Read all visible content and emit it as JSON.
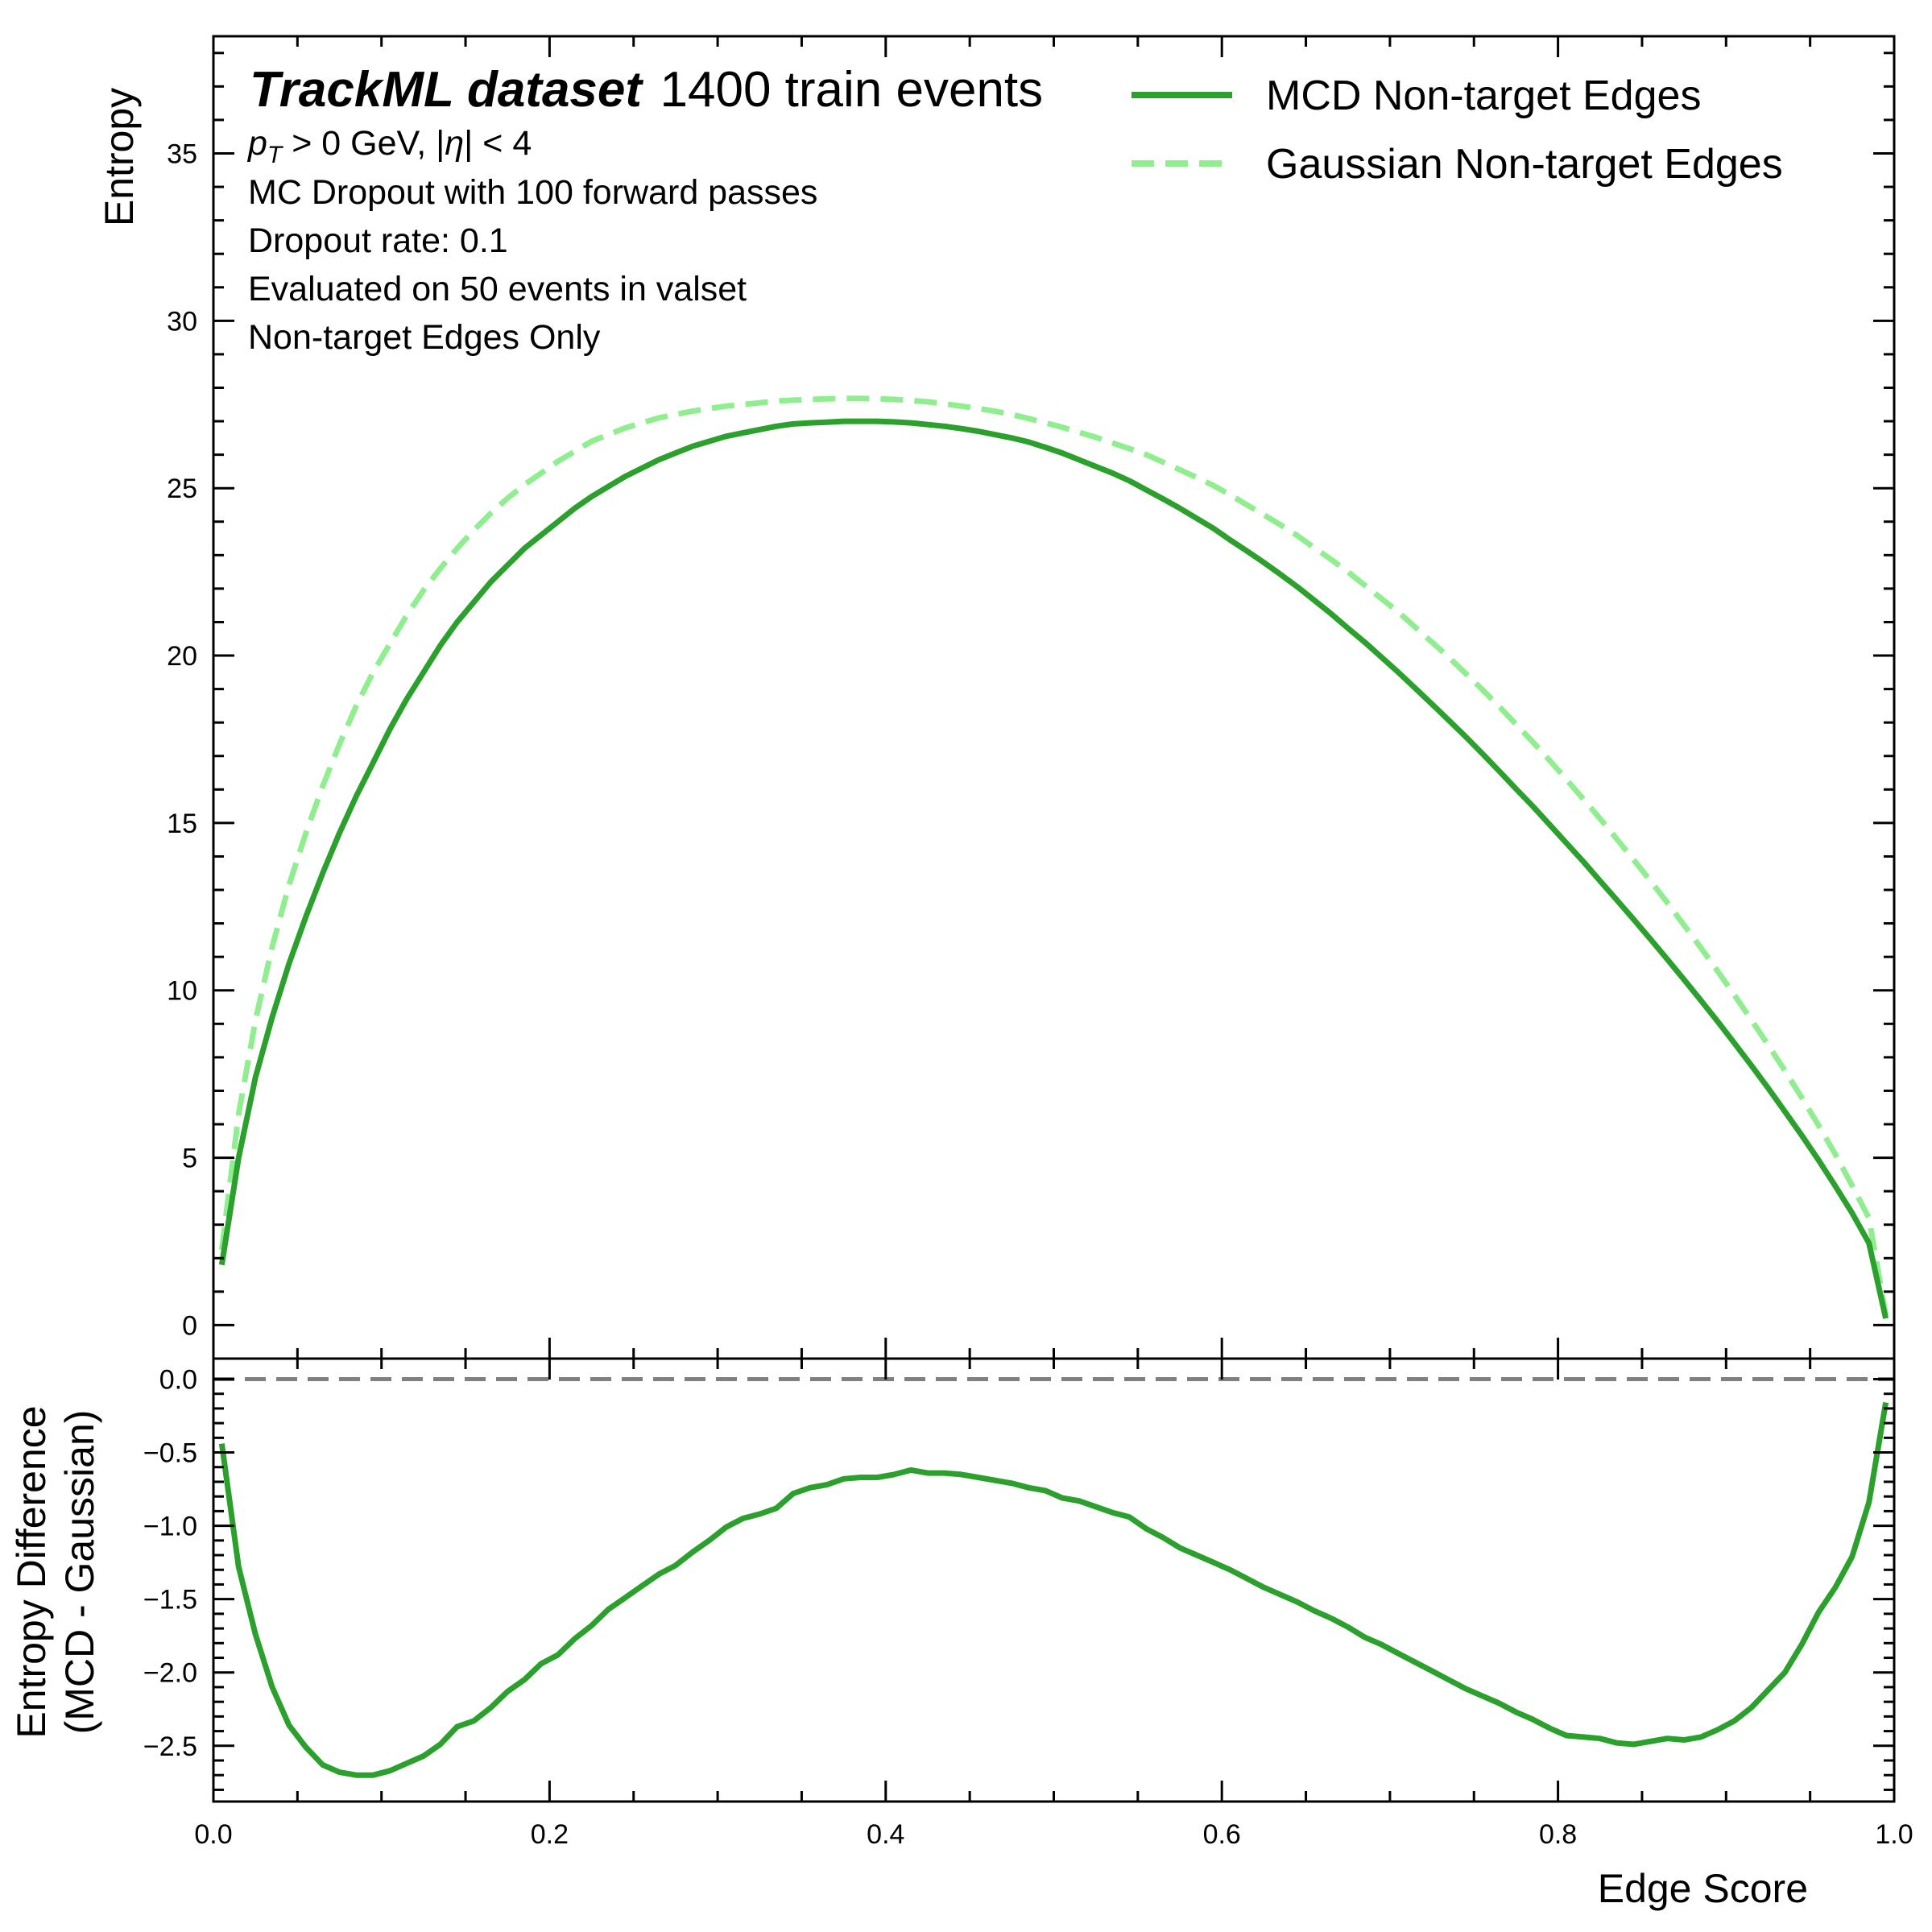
{
  "chart_data": [
    {
      "type": "line",
      "panel": "main",
      "title_bold": "TrackML dataset",
      "title_rest": "1400 train events",
      "annotations": [
        "p_T > 0 GeV, |η| < 4",
        "MC Dropout with 100 forward passes",
        "Dropout rate: 0.1",
        "Evaluated on 50 events in valset",
        "Non-target Edges Only"
      ],
      "ylabel": "Entropy",
      "xlim": [
        0,
        1
      ],
      "ylim": [
        -1,
        38.5
      ],
      "yticks": [
        0,
        5,
        10,
        15,
        20,
        25,
        30,
        35
      ],
      "y_minor_step": 1,
      "legend_placement": "top-right",
      "x": [
        0.005,
        0.015,
        0.025,
        0.035,
        0.045,
        0.055,
        0.065,
        0.075,
        0.085,
        0.095,
        0.105,
        0.115,
        0.125,
        0.135,
        0.145,
        0.155,
        0.165,
        0.175,
        0.185,
        0.195,
        0.205,
        0.215,
        0.225,
        0.235,
        0.245,
        0.255,
        0.265,
        0.275,
        0.285,
        0.295,
        0.305,
        0.315,
        0.325,
        0.335,
        0.345,
        0.355,
        0.365,
        0.375,
        0.385,
        0.395,
        0.405,
        0.415,
        0.425,
        0.435,
        0.445,
        0.455,
        0.465,
        0.475,
        0.485,
        0.495,
        0.505,
        0.515,
        0.525,
        0.535,
        0.545,
        0.555,
        0.565,
        0.575,
        0.585,
        0.595,
        0.605,
        0.615,
        0.625,
        0.635,
        0.645,
        0.655,
        0.665,
        0.675,
        0.685,
        0.695,
        0.705,
        0.715,
        0.725,
        0.735,
        0.745,
        0.755,
        0.765,
        0.775,
        0.785,
        0.795,
        0.805,
        0.815,
        0.825,
        0.835,
        0.845,
        0.855,
        0.865,
        0.875,
        0.885,
        0.895,
        0.905,
        0.915,
        0.925,
        0.935,
        0.945,
        0.955,
        0.965,
        0.975,
        0.985,
        0.995
      ],
      "series": [
        {
          "name": "MCD Non-target Edges",
          "color": "#2ca02c",
          "style": "solid",
          "values": [
            1.8,
            5.0,
            7.4,
            9.2,
            10.8,
            12.2,
            13.5,
            14.7,
            15.8,
            16.8,
            17.8,
            18.7,
            19.5,
            20.3,
            21.0,
            21.6,
            22.2,
            22.7,
            23.2,
            23.6,
            24.0,
            24.4,
            24.75,
            25.05,
            25.35,
            25.6,
            25.85,
            26.05,
            26.25,
            26.4,
            26.55,
            26.65,
            26.75,
            26.85,
            26.92,
            26.95,
            26.97,
            27.0,
            27.0,
            27.0,
            26.98,
            26.95,
            26.9,
            26.85,
            26.78,
            26.7,
            26.6,
            26.5,
            26.38,
            26.22,
            26.05,
            25.85,
            25.65,
            25.45,
            25.22,
            24.95,
            24.68,
            24.4,
            24.1,
            23.8,
            23.45,
            23.12,
            22.78,
            22.42,
            22.05,
            21.65,
            21.25,
            20.82,
            20.4,
            19.95,
            19.5,
            19.03,
            18.55,
            18.07,
            17.58,
            17.07,
            16.55,
            16.02,
            15.5,
            14.95,
            14.4,
            13.85,
            13.27,
            12.7,
            12.12,
            11.53,
            10.93,
            10.32,
            9.7,
            9.07,
            8.42,
            7.76,
            7.08,
            6.38,
            5.67,
            4.93,
            4.15,
            3.35,
            2.45,
            0.2
          ]
        },
        {
          "name": "Gaussian Non-target Edges",
          "color": "#90ee90",
          "style": "dashed",
          "values": [
            2.25,
            6.3,
            9.1,
            11.3,
            13.15,
            14.7,
            16.1,
            17.35,
            18.5,
            19.5,
            20.35,
            21.2,
            21.95,
            22.6,
            23.2,
            23.75,
            24.25,
            24.7,
            25.1,
            25.45,
            25.8,
            26.1,
            26.4,
            26.6,
            26.8,
            26.95,
            27.1,
            27.2,
            27.3,
            27.38,
            27.45,
            27.5,
            27.55,
            27.6,
            27.63,
            27.65,
            27.67,
            27.68,
            27.68,
            27.67,
            27.65,
            27.62,
            27.58,
            27.52,
            27.45,
            27.38,
            27.3,
            27.2,
            27.08,
            26.95,
            26.82,
            26.67,
            26.52,
            26.35,
            26.18,
            26.0,
            25.78,
            25.55,
            25.32,
            25.08,
            24.8,
            24.5,
            24.2,
            23.9,
            23.58,
            23.22,
            22.87,
            22.5,
            22.1,
            21.7,
            21.3,
            20.85,
            20.4,
            19.95,
            19.47,
            18.98,
            18.48,
            17.95,
            17.42,
            16.87,
            16.3,
            15.72,
            15.13,
            14.52,
            13.9,
            13.27,
            12.62,
            11.95,
            11.27,
            10.57,
            9.86,
            9.12,
            8.37,
            7.6,
            6.8,
            5.97,
            5.1,
            4.17,
            3.2,
            0.3
          ]
        }
      ]
    },
    {
      "type": "line",
      "panel": "ratio",
      "xlabel": "Edge Score",
      "ylabel_line1": "Entropy Difference",
      "ylabel_line2": "(MCD - Gaussian)",
      "xlim": [
        0,
        1
      ],
      "ylim": [
        -2.88,
        0.14
      ],
      "xticks": [
        0.0,
        0.2,
        0.4,
        0.6,
        0.8,
        1.0
      ],
      "xtick_labels": [
        "0.0",
        "0.2",
        "0.4",
        "0.6",
        "0.8",
        "1.0"
      ],
      "x_minor_step": 0.05,
      "yticks": [
        0.0,
        -0.5,
        -1.0,
        -1.5,
        -2.0,
        -2.5
      ],
      "ytick_labels": [
        "0.0",
        "−0.5",
        "−1.0",
        "−1.5",
        "−2.0",
        "−2.5"
      ],
      "y_minor_step": 0.1,
      "reference_line": {
        "y": 0.0,
        "color": "#808080",
        "style": "dashed"
      },
      "x": [
        0.005,
        0.015,
        0.025,
        0.035,
        0.045,
        0.055,
        0.065,
        0.075,
        0.085,
        0.095,
        0.105,
        0.115,
        0.125,
        0.135,
        0.145,
        0.155,
        0.165,
        0.175,
        0.185,
        0.195,
        0.205,
        0.215,
        0.225,
        0.235,
        0.245,
        0.255,
        0.265,
        0.275,
        0.285,
        0.295,
        0.305,
        0.315,
        0.325,
        0.335,
        0.345,
        0.355,
        0.365,
        0.375,
        0.385,
        0.395,
        0.405,
        0.415,
        0.425,
        0.435,
        0.445,
        0.455,
        0.465,
        0.475,
        0.485,
        0.495,
        0.505,
        0.515,
        0.525,
        0.535,
        0.545,
        0.555,
        0.565,
        0.575,
        0.585,
        0.595,
        0.605,
        0.615,
        0.625,
        0.635,
        0.645,
        0.655,
        0.665,
        0.675,
        0.685,
        0.695,
        0.705,
        0.715,
        0.725,
        0.735,
        0.745,
        0.755,
        0.765,
        0.775,
        0.785,
        0.795,
        0.805,
        0.815,
        0.825,
        0.835,
        0.845,
        0.855,
        0.865,
        0.875,
        0.885,
        0.895,
        0.905,
        0.915,
        0.925,
        0.935,
        0.945,
        0.955,
        0.965,
        0.975,
        0.985,
        0.995
      ],
      "series": [
        {
          "color": "#2ca02c",
          "style": "solid",
          "values": [
            -0.44,
            -1.28,
            -1.74,
            -2.1,
            -2.36,
            -2.51,
            -2.63,
            -2.68,
            -2.7,
            -2.7,
            -2.67,
            -2.62,
            -2.57,
            -2.49,
            -2.37,
            -2.33,
            -2.24,
            -2.13,
            -2.05,
            -1.94,
            -1.88,
            -1.77,
            -1.68,
            -1.57,
            -1.49,
            -1.41,
            -1.33,
            -1.27,
            -1.18,
            -1.1,
            -1.01,
            -0.95,
            -0.92,
            -0.88,
            -0.78,
            -0.74,
            -0.72,
            -0.68,
            -0.67,
            -0.67,
            -0.65,
            -0.62,
            -0.64,
            -0.64,
            -0.65,
            -0.67,
            -0.69,
            -0.71,
            -0.74,
            -0.76,
            -0.81,
            -0.83,
            -0.87,
            -0.91,
            -0.94,
            -1.02,
            -1.08,
            -1.15,
            -1.2,
            -1.25,
            -1.3,
            -1.36,
            -1.42,
            -1.47,
            -1.52,
            -1.58,
            -1.63,
            -1.69,
            -1.76,
            -1.81,
            -1.87,
            -1.93,
            -1.99,
            -2.05,
            -2.11,
            -2.16,
            -2.21,
            -2.27,
            -2.32,
            -2.38,
            -2.43,
            -2.44,
            -2.45,
            -2.48,
            -2.49,
            -2.47,
            -2.45,
            -2.46,
            -2.44,
            -2.39,
            -2.33,
            -2.24,
            -2.12,
            -2.0,
            -1.81,
            -1.59,
            -1.42,
            -1.21,
            -0.84,
            -0.16
          ]
        }
      ]
    }
  ]
}
